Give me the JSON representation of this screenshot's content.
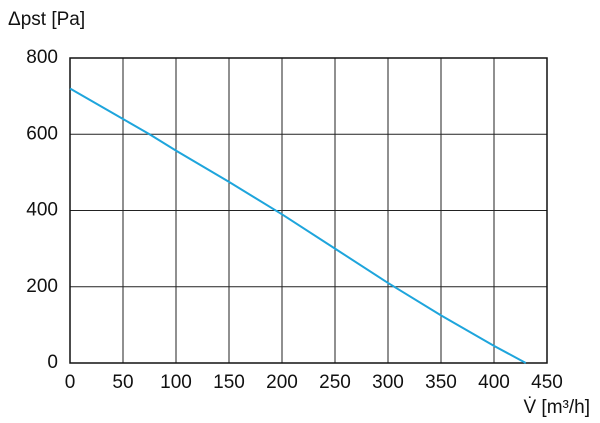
{
  "chart_data": {
    "type": "line",
    "y_label": "Δpst [Pa]",
    "x_label": "V̇ [m³/h]",
    "xlim": [
      0,
      450
    ],
    "xticks": [
      0,
      50,
      100,
      150,
      200,
      250,
      300,
      350,
      400,
      450
    ],
    "ylim": [
      0,
      800
    ],
    "yticks": [
      0,
      200,
      400,
      600,
      800
    ],
    "grid": true,
    "series": [
      {
        "color": "#1ea5dc",
        "x": [
          0,
          50,
          75,
          100,
          150,
          200,
          250,
          300,
          350,
          400,
          430
        ],
        "values": [
          720,
          640,
          600,
          557,
          475,
          390,
          300,
          210,
          125,
          45,
          0
        ]
      }
    ]
  }
}
